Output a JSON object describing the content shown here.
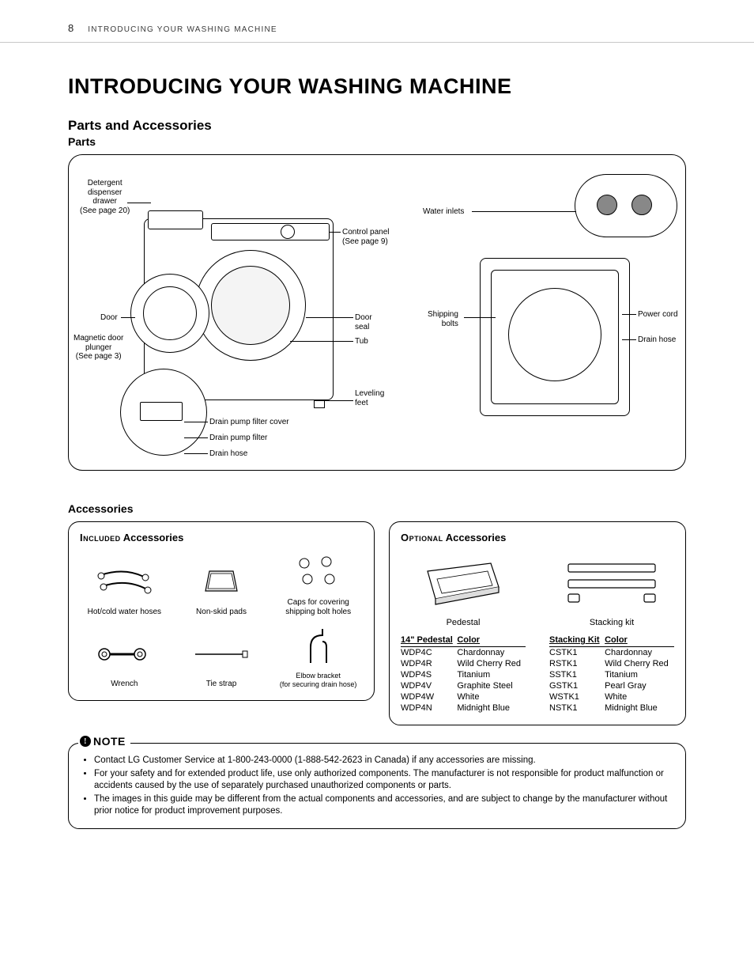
{
  "header": {
    "page_number": "8",
    "running_title": "INTRODUCING YOUR WASHING MACHINE"
  },
  "title": "INTRODUCING YOUR WASHING MACHINE",
  "section": {
    "parts_and_accessories": "Parts and Accessories",
    "parts": "Parts",
    "accessories": "Accessories"
  },
  "diagram": {
    "labels": {
      "detergent": "Detergent\ndispenser\ndrawer\n(See page 20)",
      "control_panel": "Control panel\n(See page 9)",
      "door": "Door",
      "magnetic_plunger": "Magnetic door\nplunger\n(See page 3)",
      "door_seal": "Door\nseal",
      "tub": "Tub",
      "leveling_feet": "Leveling\nfeet",
      "drain_pump_filter_cover": "Drain pump filter cover",
      "drain_pump_filter": "Drain pump filter",
      "drain_hose_front": "Drain hose",
      "water_inlets": "Water inlets",
      "shipping_bolts": "Shipping\nbolts",
      "power_cord": "Power cord",
      "drain_hose_rear": "Drain hose"
    }
  },
  "included": {
    "title_prefix": "Included",
    "title_rest": " Accessories",
    "items": [
      {
        "label": "Hot/cold water hoses"
      },
      {
        "label": "Non-skid pads"
      },
      {
        "label": "Caps for covering\nshipping bolt holes"
      },
      {
        "label": "Wrench"
      },
      {
        "label": "Tie strap"
      },
      {
        "label": "Elbow bracket\n(for securing drain hose)"
      }
    ]
  },
  "optional": {
    "title_prefix": "Optional",
    "title_rest": " Accessories",
    "pedestal": {
      "name": "Pedestal",
      "header_model": "14\" Pedestal",
      "header_color": "Color",
      "rows": [
        {
          "model": "WDP4C",
          "color": "Chardonnay"
        },
        {
          "model": "WDP4R",
          "color": "Wild Cherry Red"
        },
        {
          "model": "WDP4S",
          "color": "Titanium"
        },
        {
          "model": "WDP4V",
          "color": "Graphite Steel"
        },
        {
          "model": "WDP4W",
          "color": "White"
        },
        {
          "model": "WDP4N",
          "color": "Midnight Blue"
        }
      ]
    },
    "stacking": {
      "name": "Stacking kit",
      "header_model": "Stacking Kit",
      "header_color": "Color",
      "rows": [
        {
          "model": "CSTK1",
          "color": "Chardonnay"
        },
        {
          "model": "RSTK1",
          "color": "Wild Cherry Red"
        },
        {
          "model": "SSTK1",
          "color": "Titanium"
        },
        {
          "model": "GSTK1",
          "color": "Pearl Gray"
        },
        {
          "model": "WSTK1",
          "color": "White"
        },
        {
          "model": "NSTK1",
          "color": "Midnight Blue"
        }
      ]
    }
  },
  "note": {
    "label": "NOTE",
    "items": [
      "Contact LG Customer Service at  1-800-243-0000 (1-888-542-2623 in Canada) if any accessories are missing.",
      "For your safety and for extended product life, use only authorized components. The manufacturer is not responsible for product malfunction or accidents caused by the use of separately purchased unauthorized components or parts.",
      "The images in this guide may be different from the actual components and accessories, and are subject to change by the manufacturer without prior notice for product improvement purposes."
    ]
  }
}
